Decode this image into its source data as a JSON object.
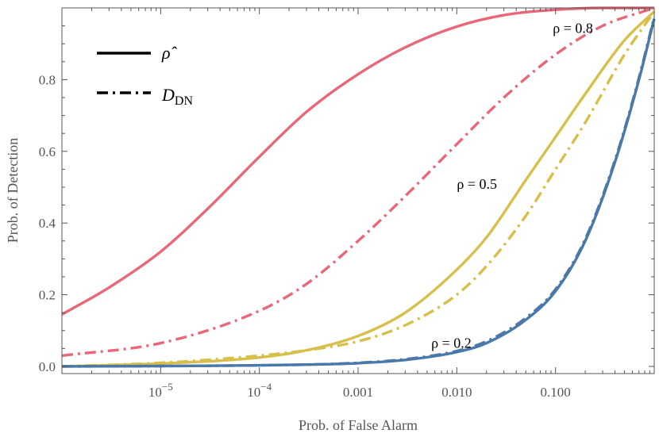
{
  "chart_data": {
    "type": "line",
    "title": "",
    "xlabel": "Prob. of False Alarm",
    "ylabel": "Prob. of Detection",
    "xscale": "log",
    "xlim": [
      1e-06,
      1
    ],
    "ylim": [
      -0.02,
      1.0
    ],
    "xticks": [
      {
        "value": 1e-05,
        "base": "10",
        "exp": "−5"
      },
      {
        "value": 0.0001,
        "base": "10",
        "exp": "−4"
      },
      {
        "value": 0.001,
        "label": "0.001"
      },
      {
        "value": 0.01,
        "label": "0.010"
      },
      {
        "value": 0.1,
        "label": "0.100"
      }
    ],
    "yticks": [
      {
        "value": 0.0,
        "label": "0.0"
      },
      {
        "value": 0.2,
        "label": "0.2"
      },
      {
        "value": 0.4,
        "label": "0.4"
      },
      {
        "value": 0.6,
        "label": "0.6"
      },
      {
        "value": 0.8,
        "label": "0.8"
      }
    ],
    "legend": {
      "position": "top-left",
      "entries": [
        {
          "label": "ρ̂",
          "style": "solid"
        },
        {
          "label": "D",
          "sub": "DN",
          "style": "dashdot"
        }
      ]
    },
    "annotations": [
      {
        "text": "ρ = 0.8",
        "x": 0.15,
        "y": 0.93
      },
      {
        "text": "ρ = 0.5",
        "x": 0.016,
        "y": 0.495
      },
      {
        "text": "ρ = 0.2",
        "x": 0.0088,
        "y": 0.052
      }
    ],
    "series": [
      {
        "name": "ρ = 0.8, ρ̂",
        "color": "#e8687a",
        "style": "solid",
        "x": [
          1e-06,
          3e-06,
          1e-05,
          3e-05,
          0.0001,
          0.0003,
          0.001,
          0.003,
          0.01,
          0.03,
          0.1,
          0.3,
          1
        ],
        "y": [
          0.145,
          0.22,
          0.32,
          0.44,
          0.585,
          0.71,
          0.815,
          0.89,
          0.948,
          0.98,
          0.995,
          1.0,
          1.0
        ]
      },
      {
        "name": "ρ = 0.8, D_DN",
        "color": "#e8687a",
        "style": "dashdot",
        "x": [
          1e-06,
          1e-05,
          0.0001,
          0.0003,
          0.001,
          0.003,
          0.01,
          0.03,
          0.1,
          0.3,
          1
        ],
        "y": [
          0.03,
          0.065,
          0.155,
          0.23,
          0.35,
          0.475,
          0.62,
          0.75,
          0.87,
          0.95,
          1.0
        ]
      },
      {
        "name": "ρ = 0.5, ρ̂",
        "color": "#d6bf4a",
        "style": "solid",
        "x": [
          1e-06,
          1e-05,
          0.0001,
          0.0003,
          0.001,
          0.003,
          0.01,
          0.02,
          0.05,
          0.1,
          0.2,
          0.5,
          1
        ],
        "y": [
          0.0,
          0.008,
          0.025,
          0.045,
          0.085,
          0.15,
          0.27,
          0.36,
          0.52,
          0.64,
          0.76,
          0.91,
          0.99
        ]
      },
      {
        "name": "ρ = 0.5, D_DN",
        "color": "#d6bf4a",
        "style": "dashdot",
        "x": [
          1e-06,
          1e-05,
          0.0001,
          0.0003,
          0.001,
          0.003,
          0.01,
          0.02,
          0.05,
          0.1,
          0.2,
          0.5,
          1
        ],
        "y": [
          0.0,
          0.01,
          0.03,
          0.045,
          0.07,
          0.115,
          0.2,
          0.28,
          0.42,
          0.55,
          0.68,
          0.87,
          0.99
        ]
      },
      {
        "name": "ρ = 0.2, ρ̂",
        "color": "#4a78a8",
        "style": "solid",
        "x": [
          1e-06,
          1e-05,
          0.0001,
          0.0003,
          0.001,
          0.003,
          0.01,
          0.02,
          0.05,
          0.1,
          0.2,
          0.4,
          0.7,
          1
        ],
        "y": [
          0.0,
          0.001,
          0.003,
          0.005,
          0.009,
          0.018,
          0.04,
          0.065,
          0.13,
          0.21,
          0.35,
          0.57,
          0.8,
          0.97
        ]
      },
      {
        "name": "ρ = 0.2, D_DN",
        "color": "#4a78a8",
        "style": "dashdot",
        "x": [
          1e-06,
          1e-05,
          0.0001,
          0.0003,
          0.001,
          0.003,
          0.01,
          0.02,
          0.05,
          0.1,
          0.2,
          0.4,
          0.7,
          1
        ],
        "y": [
          0.0,
          0.001,
          0.003,
          0.005,
          0.01,
          0.02,
          0.043,
          0.07,
          0.135,
          0.215,
          0.355,
          0.575,
          0.805,
          0.975
        ]
      }
    ]
  }
}
